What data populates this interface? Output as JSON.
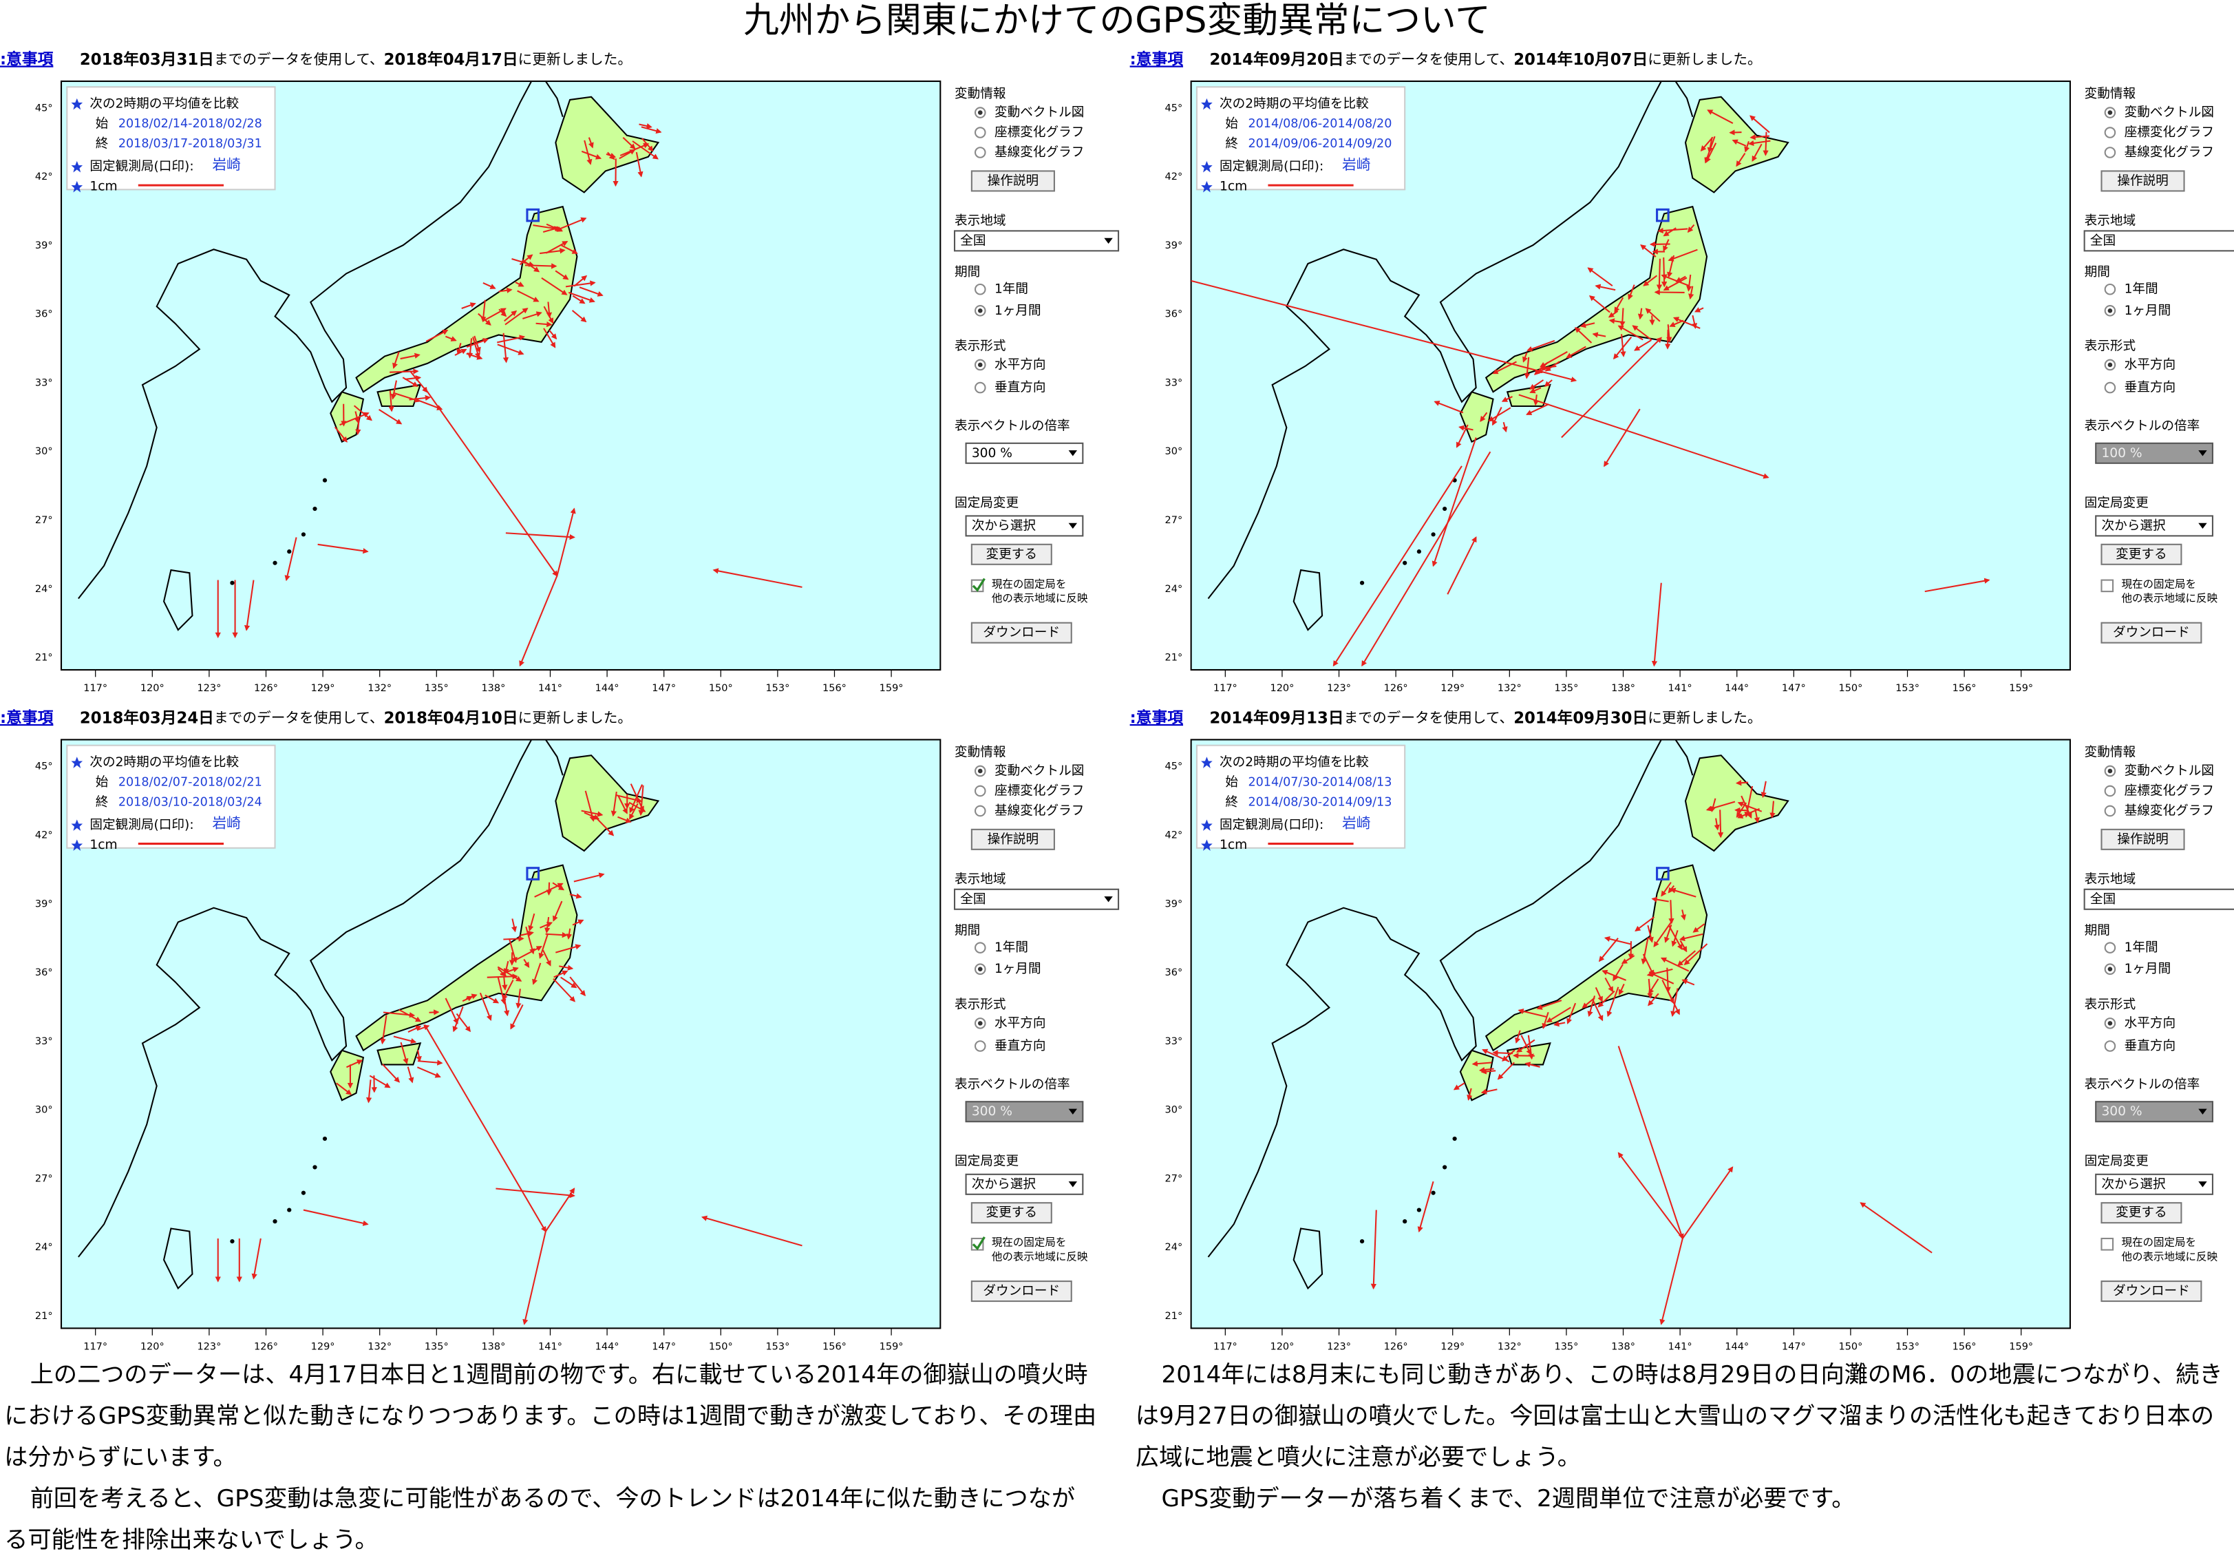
{
  "title": "九州から関東にかけてのGPS変動異常について",
  "common": {
    "notice_link": ":意事項",
    "header_mid": "までのデータを使用して、",
    "header_end": "に更新しました。",
    "legend_title": "次の2時期の平均値を比較",
    "start_label": "始",
    "end_label": "終",
    "fixed_label": "固定観測局(口印):",
    "fixed_station": "岩崎",
    "scale_label": "1cm",
    "lat_labels": [
      "45°",
      "42°",
      "39°",
      "36°",
      "33°",
      "30°",
      "27°",
      "24°",
      "21°"
    ],
    "lon_labels": [
      "117°",
      "120°",
      "123°",
      "126°",
      "129°",
      "132°",
      "135°",
      "138°",
      "141°",
      "144°",
      "147°",
      "150°",
      "153°",
      "156°",
      "159°"
    ],
    "sidebar": {
      "info_heading": "変動情報",
      "info_options": [
        "変動ベクトル図",
        "座標変化グラフ",
        "基線変化グラフ"
      ],
      "help_button": "操作説明",
      "region_heading": "表示地域",
      "region_value": "全国",
      "period_heading": "期間",
      "period_options": [
        "1年間",
        "1ヶ月間"
      ],
      "format_heading": "表示形式",
      "format_options": [
        "水平方向",
        "垂直方向"
      ],
      "magnification_heading": "表示ベクトルの倍率",
      "station_heading": "固定局変更",
      "station_select": "次から選択",
      "change_button": "変更する",
      "reflect_label": [
        "現在の固定局を",
        "他の表示地域に反映"
      ],
      "download_button": "ダウンロード"
    }
  },
  "panels": [
    {
      "data_date": "2018年03月31日",
      "update_date": "2018年04月17日",
      "start_period": "2018/02/14-2018/02/28",
      "end_period": "2018/03/17-2018/03/31",
      "magnification": "300 %",
      "magnification_disabled": false,
      "reflect_checked": true
    },
    {
      "data_date": "2014年09月20日",
      "update_date": "2014年10月07日",
      "start_period": "2014/08/06-2014/08/20",
      "end_period": "2014/09/06-2014/09/20",
      "magnification": "100 %",
      "magnification_disabled": true,
      "reflect_checked": false
    },
    {
      "data_date": "2018年03月24日",
      "update_date": "2018年04月10日",
      "start_period": "2018/02/07-2018/02/21",
      "end_period": "2018/03/10-2018/03/24",
      "magnification": "300 %",
      "magnification_disabled": true,
      "reflect_checked": true
    },
    {
      "data_date": "2014年09月13日",
      "update_date": "2014年09月30日",
      "start_period": "2014/07/30-2014/08/13",
      "end_period": "2014/08/30-2014/09/13",
      "magnification": "300 %",
      "magnification_disabled": true,
      "reflect_checked": false
    }
  ],
  "body_text": {
    "left": [
      "上の二つのデーターは、4月17日本日と1週間前の物です。右に載せている2014年の御嶽山の噴火時におけるGPS変動異常と似た動きになりつつあります。この時は1週間で動きが激変しており、その理由は分からずにいます。",
      "前回を考えると、GPS変動は急変に可能性があるので、今のトレンドは2014年に似た動きにつながる可能性を排除出来ないでしょう。"
    ],
    "right": [
      "2014年には8月末にも同じ動きがあり、この時は8月29日の日向灘のM6．0の地震につながり、続きは9月27日の御嶽山の噴火でした。今回は富士山と大雪山のマグマ溜まりの活性化も起きており日本の広域に地震と噴火に注意が必要でしょう。",
      "GPS変動データーが落ち着くまで、2週間単位で注意が必要です。"
    ]
  }
}
